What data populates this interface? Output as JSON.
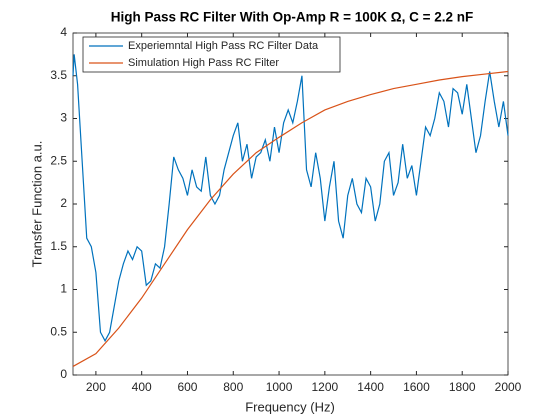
{
  "chart_data": {
    "type": "line",
    "title": "High Pass RC Filter With Op-Amp R = 100K Ω, C = 2.2 nF",
    "x_label": "Frequency (Hz)",
    "y_label": "Transfer Function a.u.",
    "xlim": [
      100,
      2000
    ],
    "ylim": [
      0,
      4
    ],
    "xticks": [
      200,
      400,
      600,
      800,
      1000,
      1200,
      1400,
      1600,
      1800,
      2000
    ],
    "yticks": [
      0,
      0.5,
      1,
      1.5,
      2,
      2.5,
      3,
      3.5,
      4
    ],
    "legend": "upper-left",
    "series": [
      {
        "name": "Experiemntal High Pass RC Filter Data",
        "color": "#0072bd",
        "x": [
          100,
          105,
          120,
          140,
          160,
          180,
          200,
          220,
          240,
          260,
          280,
          300,
          320,
          340,
          360,
          380,
          400,
          420,
          440,
          460,
          480,
          500,
          520,
          540,
          560,
          580,
          600,
          620,
          640,
          660,
          680,
          700,
          720,
          740,
          760,
          780,
          800,
          820,
          840,
          860,
          880,
          900,
          920,
          940,
          960,
          980,
          1000,
          1020,
          1040,
          1060,
          1080,
          1100,
          1120,
          1140,
          1160,
          1180,
          1200,
          1220,
          1240,
          1260,
          1280,
          1300,
          1320,
          1340,
          1360,
          1380,
          1400,
          1420,
          1440,
          1460,
          1480,
          1500,
          1520,
          1540,
          1560,
          1580,
          1600,
          1620,
          1640,
          1660,
          1680,
          1700,
          1720,
          1740,
          1760,
          1780,
          1800,
          1820,
          1840,
          1860,
          1880,
          1900,
          1920,
          1940,
          1960,
          1980,
          2000
        ],
        "values": [
          3.5,
          3.75,
          3.4,
          2.5,
          1.6,
          1.5,
          1.2,
          0.5,
          0.4,
          0.5,
          0.8,
          1.1,
          1.3,
          1.45,
          1.35,
          1.5,
          1.45,
          1.05,
          1.1,
          1.3,
          1.25,
          1.5,
          2.0,
          2.55,
          2.4,
          2.3,
          2.1,
          2.4,
          2.2,
          2.15,
          2.55,
          2.1,
          2.0,
          2.1,
          2.4,
          2.6,
          2.8,
          2.95,
          2.5,
          2.7,
          2.3,
          2.55,
          2.6,
          2.75,
          2.5,
          2.9,
          2.6,
          2.95,
          3.1,
          2.95,
          3.2,
          3.5,
          2.4,
          2.2,
          2.6,
          2.3,
          1.8,
          2.2,
          2.5,
          1.8,
          1.6,
          2.1,
          2.3,
          2.0,
          1.9,
          2.3,
          2.2,
          1.8,
          2.0,
          2.5,
          2.6,
          2.1,
          2.25,
          2.7,
          2.3,
          2.45,
          2.1,
          2.5,
          2.9,
          2.8,
          3.0,
          3.3,
          3.2,
          2.9,
          3.35,
          3.3,
          3.05,
          3.4,
          3.0,
          2.6,
          2.8,
          3.2,
          3.55,
          3.2,
          2.9,
          3.2,
          2.8
        ]
      },
      {
        "name": "Simulation High Pass RC Filter",
        "color": "#d95319",
        "x": [
          100,
          200,
          300,
          400,
          500,
          600,
          700,
          800,
          900,
          1000,
          1100,
          1200,
          1300,
          1400,
          1500,
          1600,
          1700,
          1800,
          1900,
          2000
        ],
        "values": [
          0.1,
          0.25,
          0.55,
          0.9,
          1.3,
          1.7,
          2.05,
          2.35,
          2.6,
          2.78,
          2.95,
          3.1,
          3.2,
          3.28,
          3.35,
          3.4,
          3.45,
          3.49,
          3.52,
          3.55
        ]
      }
    ]
  }
}
